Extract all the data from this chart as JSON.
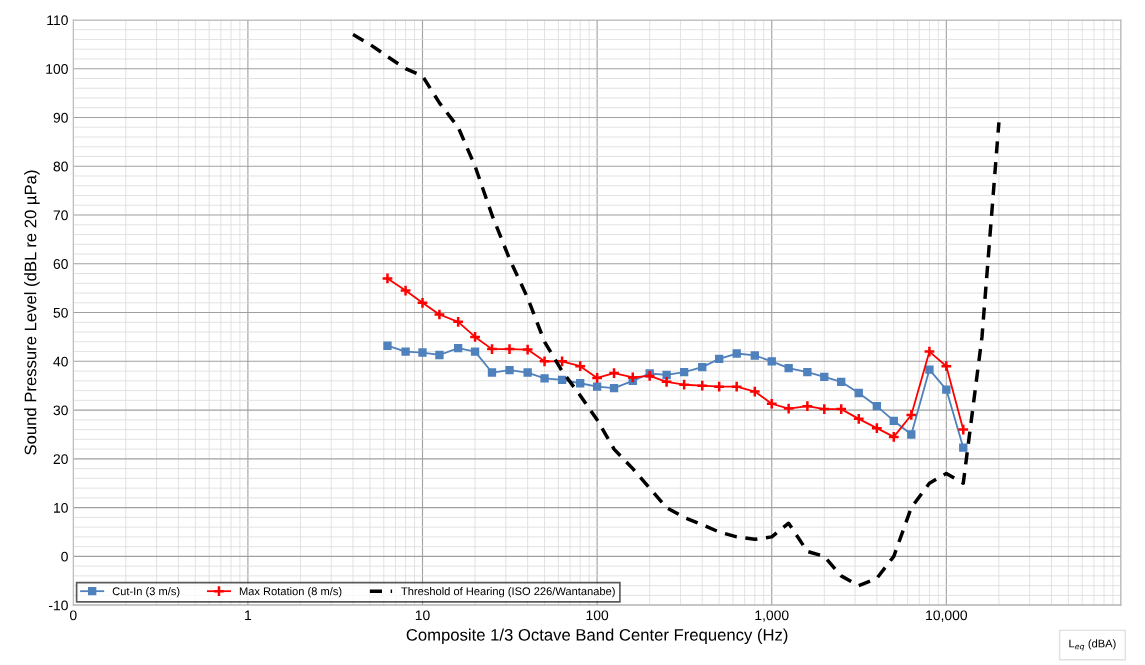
{
  "chart_data": {
    "type": "line",
    "xlabel": "Composite 1/3 Octave Band Center Frequency (Hz)",
    "ylabel": "Sound Pressure Level (dBL re 20 µPa)",
    "log": "x",
    "grid": true,
    "legend": "bottom left",
    "xlim": [
      0.1,
      100000
    ],
    "xticks": [
      {
        "value": 0.1,
        "label": "0"
      },
      1,
      10,
      100,
      {
        "value": 1000,
        "label": "1,000"
      },
      {
        "value": 10000,
        "label": "10,000"
      },
      {
        "value": 100000,
        "label": null
      }
    ],
    "ylim": [
      -10,
      110
    ],
    "yticks": [
      -10,
      0,
      10,
      20,
      30,
      40,
      50,
      60,
      70,
      80,
      90,
      100,
      110
    ],
    "annotations": [
      "L$_{eq}$ (dBA)"
    ],
    "series": [
      {
        "name": "Cut-In (3 m/s)",
        "color": "#4f81bd",
        "marker": "square",
        "line_style": "solid",
        "x": [
          6.3,
          8,
          10,
          12.5,
          16,
          20,
          25,
          31.5,
          40,
          50,
          63,
          80,
          100,
          125,
          160,
          200,
          250,
          315,
          400,
          500,
          630,
          800,
          1000,
          1250,
          1600,
          2000,
          2500,
          3150,
          4000,
          5000,
          6300,
          8000,
          10000,
          12500
        ],
        "values": [
          43.2,
          42,
          41.8,
          41.3,
          42.7,
          42,
          37.7,
          38.2,
          37.7,
          36.5,
          36.2,
          35.5,
          34.8,
          34.5,
          36,
          37.5,
          37.2,
          37.8,
          38.8,
          40.5,
          41.6,
          41.2,
          40,
          38.6,
          37.8,
          36.8,
          35.8,
          33.5,
          30.8,
          27.8,
          25,
          38.3,
          34.2,
          22.3
        ]
      },
      {
        "name": "Max Rotation (8 m/s)",
        "color": "#ff0000",
        "marker": "cross",
        "line_style": "solid",
        "x": [
          6.3,
          8,
          10,
          12.5,
          16,
          20,
          25,
          31.5,
          40,
          50,
          63,
          80,
          100,
          125,
          160,
          200,
          250,
          315,
          400,
          500,
          630,
          800,
          1000,
          1250,
          1600,
          2000,
          2500,
          3150,
          4000,
          5000,
          6300,
          8000,
          10000,
          12500
        ],
        "values": [
          57,
          54.5,
          52,
          49.6,
          48.1,
          45,
          42.5,
          42.5,
          42.4,
          40,
          40,
          39,
          36.6,
          37.6,
          36.7,
          37,
          35.8,
          35.2,
          35,
          34.8,
          34.8,
          33.8,
          31.3,
          30.3,
          30.8,
          30.2,
          30.2,
          28.2,
          26.3,
          24.5,
          29,
          42,
          39,
          26
        ]
      },
      {
        "name": "Threshold of Hearing (ISO 226/Wantanabe)",
        "color": "#000000",
        "marker": "none",
        "line_style": "dashed",
        "x": [
          4,
          5,
          6.3,
          8,
          10,
          12.5,
          16,
          20,
          25,
          31.5,
          40,
          50,
          63,
          80,
          100,
          125,
          160,
          200,
          250,
          315,
          400,
          500,
          630,
          800,
          1000,
          1250,
          1600,
          2000,
          2500,
          3150,
          4000,
          5000,
          6300,
          8000,
          10000,
          12500,
          16000,
          20000
        ],
        "values": [
          107,
          105,
          102.5,
          100,
          98.5,
          93,
          88,
          80,
          70,
          61,
          53,
          44,
          38,
          33,
          28,
          22,
          18,
          14,
          10,
          8,
          6.5,
          5,
          4,
          3.5,
          4,
          6.8,
          1,
          0,
          -4,
          -6,
          -4.5,
          0,
          10,
          15,
          17,
          15,
          45,
          89
        ]
      }
    ]
  }
}
